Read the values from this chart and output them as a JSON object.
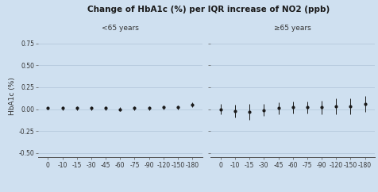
{
  "title": "Change of HbA1c (%) per IQR increase of NO2 (ppb)",
  "ylabel": "HbA1c (%)",
  "bg_color": "#cfe0f0",
  "ylim": [
    -0.55,
    0.85
  ],
  "yticks": [
    -0.5,
    -0.25,
    0.0,
    0.25,
    0.5,
    0.75
  ],
  "x_labels": [
    "0",
    "-10",
    "-15",
    "-30",
    "-45",
    "-60",
    "-75",
    "-90",
    "-120",
    "-150",
    "-180"
  ],
  "group1_label": "<65 years",
  "group2_label": "≥65 years",
  "group1_centers": [
    0.01,
    0.01,
    0.01,
    0.01,
    0.01,
    0.0,
    0.01,
    0.01,
    0.02,
    0.02,
    0.05
  ],
  "group1_lo": [
    0.0,
    -0.01,
    -0.01,
    -0.01,
    -0.01,
    -0.02,
    -0.01,
    -0.01,
    0.0,
    0.0,
    0.02
  ],
  "group1_hi": [
    0.02,
    0.03,
    0.03,
    0.03,
    0.03,
    0.02,
    0.03,
    0.03,
    0.04,
    0.04,
    0.08
  ],
  "group2_centers": [
    0.0,
    -0.02,
    -0.03,
    -0.01,
    0.01,
    0.02,
    0.02,
    0.02,
    0.03,
    0.03,
    0.06
  ],
  "group2_lo": [
    -0.06,
    -0.09,
    -0.12,
    -0.08,
    -0.06,
    -0.05,
    -0.05,
    -0.06,
    -0.06,
    -0.06,
    -0.03
  ],
  "group2_hi": [
    0.06,
    0.05,
    0.06,
    0.06,
    0.08,
    0.09,
    0.09,
    0.1,
    0.12,
    0.12,
    0.15
  ],
  "dot_color": "#1a1a1a",
  "line_color": "#1a1a1a",
  "grid_color": "#b0c4d8",
  "spine_color": "#555555",
  "title_fontsize": 7.5,
  "label_fontsize": 6.5,
  "tick_fontsize": 5.5,
  "group_label_fontsize": 6.5
}
